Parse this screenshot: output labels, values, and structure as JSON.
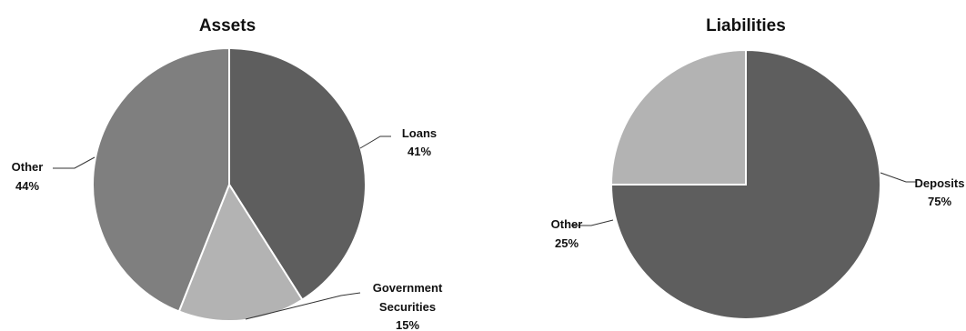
{
  "chart_data": [
    {
      "type": "pie",
      "title": "Assets",
      "slices": [
        {
          "label": "Loans",
          "value": 41,
          "display": "41%",
          "color": "#5e5e5e"
        },
        {
          "label": "Government Securities",
          "label_lines": [
            "Government",
            "Securities"
          ],
          "value": 15,
          "display": "15%",
          "color": "#b3b3b3"
        },
        {
          "label": "Other",
          "value": 44,
          "display": "44%",
          "color": "#7f7f7f"
        }
      ]
    },
    {
      "type": "pie",
      "title": "Liabilities",
      "slices": [
        {
          "label": "Deposits",
          "value": 75,
          "display": "75%",
          "color": "#5e5e5e"
        },
        {
          "label": "Other",
          "value": 25,
          "display": "25%",
          "color": "#b3b3b3"
        }
      ]
    }
  ]
}
